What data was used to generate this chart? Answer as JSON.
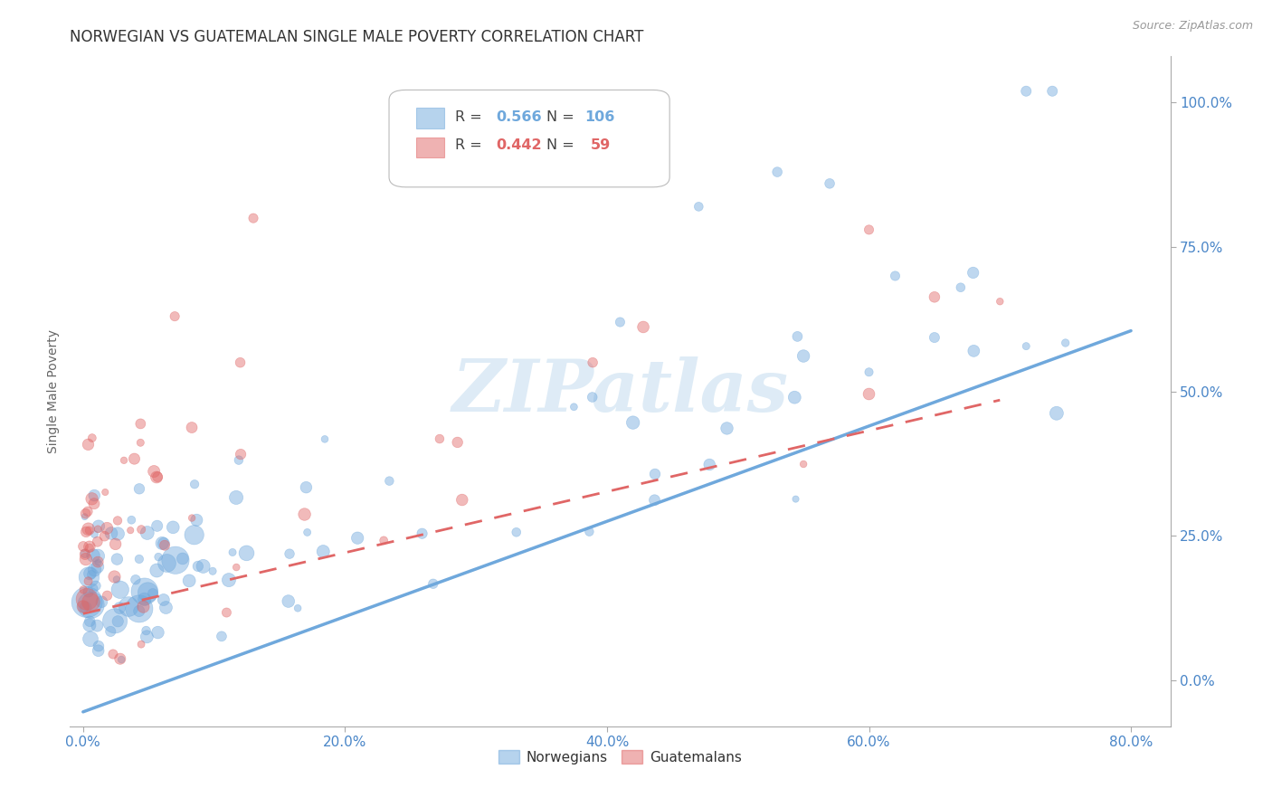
{
  "title": "NORWEGIAN VS GUATEMALAN SINGLE MALE POVERTY CORRELATION CHART",
  "source": "Source: ZipAtlas.com",
  "ylabel": "Single Male Poverty",
  "xlabel_ticks": [
    "0.0%",
    "20.0%",
    "40.0%",
    "60.0%",
    "80.0%"
  ],
  "xlabel_tick_vals": [
    0.0,
    0.2,
    0.4,
    0.6,
    0.8
  ],
  "ylabel_ticks": [
    "0.0%",
    "25.0%",
    "50.0%",
    "75.0%",
    "100.0%"
  ],
  "ylabel_tick_vals": [
    0.0,
    0.25,
    0.5,
    0.75,
    1.0
  ],
  "xlim": [
    -0.01,
    0.83
  ],
  "ylim": [
    -0.08,
    1.08
  ],
  "norwegian_color": "#6fa8dc",
  "guatemalan_color": "#e06666",
  "norwegian_label": "Norwegians",
  "guatemalan_label": "Guatemalans",
  "norwegian_R": 0.566,
  "norwegian_N": 106,
  "guatemalan_R": 0.442,
  "guatemalan_N": 59,
  "watermark_text": "ZIPatlas",
  "background_color": "#ffffff",
  "grid_color": "#cccccc",
  "title_fontsize": 12,
  "axis_label_fontsize": 10,
  "tick_label_color": "#4a86c8",
  "tick_label_fontsize": 11,
  "nor_line_x0": 0.0,
  "nor_line_y0": -0.055,
  "nor_line_x1": 0.8,
  "nor_line_y1": 0.605,
  "gua_line_x0": 0.0,
  "gua_line_y0": 0.115,
  "gua_line_x1": 0.7,
  "gua_line_y1": 0.485,
  "seed": 77
}
